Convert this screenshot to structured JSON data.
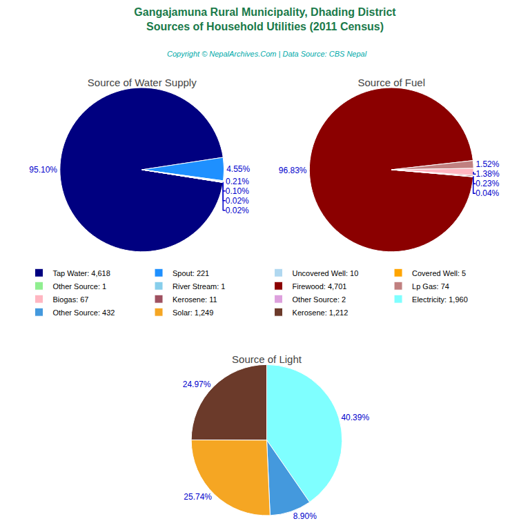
{
  "title": {
    "lines": [
      "Gangajamuna Rural Municipality, Dhading District",
      "Sources of Household Utilities (2011 Census)"
    ],
    "color": "#1a7a4a"
  },
  "annotation": {
    "text": "Copyright © NepalArchives.Com | Data Source: CBS Nepal",
    "color": "#00aaaa"
  },
  "legend": "center",
  "chart_data": [
    {
      "type": "pie",
      "title": "Source of Water Supply",
      "categories": [
        "Tap Water: 4,618",
        "Spout: 221",
        "Uncovered Well: 10",
        "Covered Well: 5",
        "Other Source: 1",
        "River Stream: 1"
      ],
      "values": [
        95.1,
        4.55,
        0.21,
        0.1,
        0.02,
        0.02
      ],
      "value_labels": [
        "95.10%",
        "4.55%",
        "0.21%",
        "0.10%",
        "0.02%",
        "0.02%"
      ],
      "colors": [
        "#000080",
        "#1e90ff",
        "#b0d8f0",
        "#ffa500",
        "#90ee90",
        "#87ceeb"
      ],
      "data_labels": true
    },
    {
      "type": "pie",
      "title": "Source of Fuel",
      "categories": [
        "Firewood: 4,701",
        "Lp Gas: 74",
        "Biogas: 67",
        "Kerosene: 11",
        "Other Source: 2"
      ],
      "values": [
        96.83,
        1.52,
        1.38,
        0.23,
        0.04
      ],
      "value_labels": [
        "96.83%",
        "1.52%",
        "1.38%",
        "0.23%",
        "0.04%"
      ],
      "colors": [
        "#8b0000",
        "#c08080",
        "#ffb6c1",
        "#9e5060",
        "#dda0dd"
      ],
      "data_labels": true
    },
    {
      "type": "pie",
      "title": "Source of Light",
      "categories": [
        "Electricity: 1,960",
        "Other Source: 432",
        "Solar: 1,249",
        "Kerosene: 1,212"
      ],
      "values": [
        40.39,
        8.9,
        25.74,
        24.97
      ],
      "value_labels": [
        "40.39%",
        "8.90%",
        "25.74%",
        "24.97%"
      ],
      "colors": [
        "#7fffff",
        "#4499dd",
        "#f5a623",
        "#6b3a2a"
      ],
      "data_labels": true
    }
  ]
}
